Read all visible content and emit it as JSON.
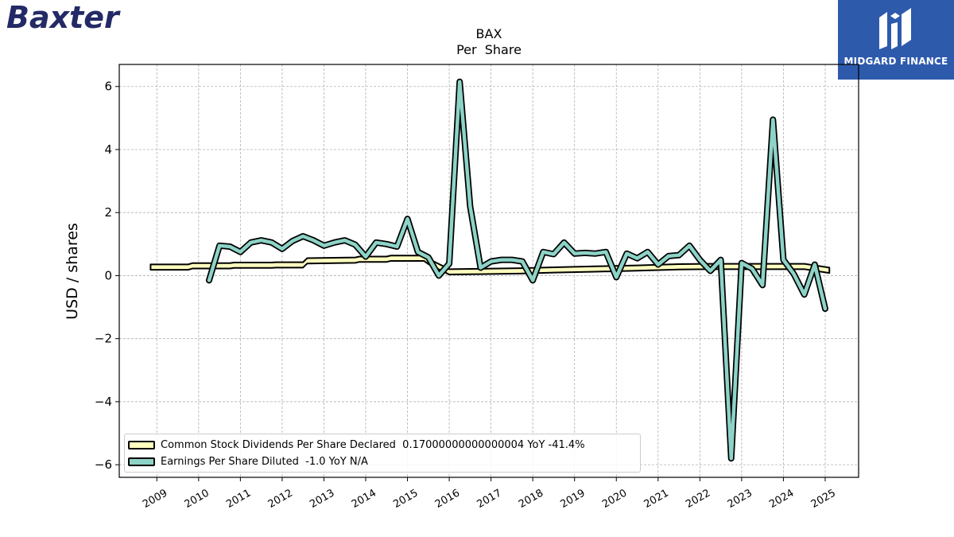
{
  "brand": {
    "name": "Baxter",
    "color": "#232a66"
  },
  "publisher": {
    "name": "MIDGARD FINANCE",
    "color": "#2e5aac"
  },
  "chart_data": {
    "type": "line",
    "title": "BAX",
    "subtitle": "Per  Share",
    "ylabel": "USD / shares",
    "xlabel": "",
    "xlim": [
      2008.1,
      2025.8
    ],
    "ylim": [
      -6.4,
      6.7
    ],
    "yticks": [
      6,
      4,
      2,
      0,
      -2,
      -4,
      -6
    ],
    "ytick_labels": [
      "6",
      "4",
      "2",
      "0",
      "−2",
      "−4",
      "−6"
    ],
    "xticks": [
      2009,
      2010,
      2011,
      2012,
      2013,
      2014,
      2015,
      2016,
      2017,
      2018,
      2019,
      2020,
      2021,
      2022,
      2023,
      2024,
      2025
    ],
    "xtick_labels": [
      "2009",
      "2010",
      "2011",
      "2012",
      "2013",
      "2014",
      "2015",
      "2016",
      "2017",
      "2018",
      "2019",
      "2020",
      "2021",
      "2022",
      "2023",
      "2024",
      "2025"
    ],
    "grid": true,
    "legend_position": "lower-left",
    "series": [
      {
        "name": "Common Stock Dividends Per Share Declared",
        "legend_label": "Common Stock Dividends Per Share Declared  0.17000000000000004 YoY -41.4%",
        "color": "#ffffc0",
        "style": "band",
        "x": [
          2008.85,
          2009.75,
          2009.85,
          2010.75,
          2010.85,
          2011.75,
          2011.85,
          2012.5,
          2012.6,
          2013.75,
          2013.85,
          2014.5,
          2014.6,
          2015.4,
          2015.5,
          2016.0,
          2016.7,
          2017.7,
          2018.5,
          2019.5,
          2020.5,
          2021.5,
          2022.3,
          2022.5,
          2023.5,
          2024.5,
          2025.1
        ],
        "values": [
          0.27,
          0.27,
          0.31,
          0.31,
          0.33,
          0.33,
          0.34,
          0.34,
          0.47,
          0.49,
          0.52,
          0.52,
          0.55,
          0.55,
          0.45,
          0.12,
          0.13,
          0.15,
          0.18,
          0.21,
          0.24,
          0.28,
          0.29,
          0.29,
          0.29,
          0.29,
          0.17
        ]
      },
      {
        "name": "Earnings Per Share Diluted",
        "legend_label": "Earnings Per Share Diluted  -1.0 YoY N/A",
        "color": "#8dd3c7",
        "style": "line",
        "x": [
          2010.25,
          2010.5,
          2010.75,
          2011.0,
          2011.25,
          2011.5,
          2011.75,
          2012.0,
          2012.25,
          2012.5,
          2012.75,
          2013.0,
          2013.25,
          2013.5,
          2013.75,
          2014.0,
          2014.25,
          2014.5,
          2014.75,
          2015.0,
          2015.25,
          2015.5,
          2015.75,
          2016.0,
          2016.25,
          2016.5,
          2016.75,
          2017.0,
          2017.25,
          2017.5,
          2017.75,
          2018.0,
          2018.25,
          2018.5,
          2018.75,
          2019.0,
          2019.25,
          2019.5,
          2019.75,
          2020.0,
          2020.25,
          2020.5,
          2020.75,
          2021.0,
          2021.25,
          2021.5,
          2021.75,
          2022.0,
          2022.25,
          2022.5,
          2022.75,
          2023.0,
          2023.25,
          2023.5,
          2023.75,
          2024.0,
          2024.25,
          2024.5,
          2024.75,
          2025.0
        ],
        "values": [
          -0.15,
          0.95,
          0.92,
          0.75,
          1.05,
          1.12,
          1.05,
          0.85,
          1.1,
          1.25,
          1.12,
          0.95,
          1.05,
          1.12,
          0.98,
          0.6,
          1.05,
          1.0,
          0.92,
          1.8,
          0.75,
          0.58,
          0.0,
          0.38,
          6.15,
          2.2,
          0.25,
          0.45,
          0.5,
          0.5,
          0.45,
          -0.15,
          0.75,
          0.68,
          1.05,
          0.7,
          0.72,
          0.7,
          0.75,
          -0.05,
          0.7,
          0.55,
          0.75,
          0.35,
          0.62,
          0.65,
          0.95,
          0.5,
          0.15,
          0.5,
          -5.8,
          0.4,
          0.22,
          -0.3,
          4.95,
          0.5,
          0.05,
          -0.6,
          0.35,
          -1.05
        ]
      }
    ]
  }
}
